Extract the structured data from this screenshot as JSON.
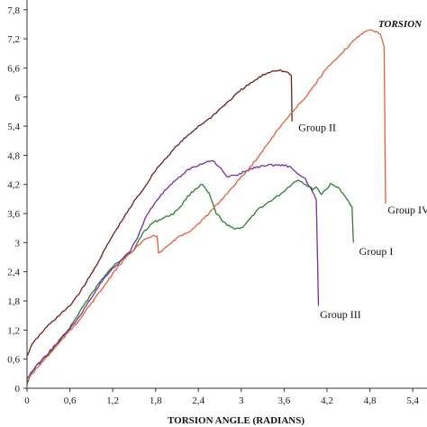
{
  "chart_data": {
    "type": "line",
    "title": "TORSION",
    "xlabel": "TORSION ANGLE (RADIANS)",
    "ylabel": "",
    "xlim": [
      0,
      5.6
    ],
    "ylim": [
      0,
      8
    ],
    "xticks": [
      "0",
      "0,6",
      "1,2",
      "1,8",
      "2,4",
      "3",
      "3,6",
      "4,2",
      "4,8",
      "5,4"
    ],
    "yticks": [
      "0",
      "0,6",
      "1,2",
      "1,8",
      "2,4",
      "3",
      "3,6",
      "4,2",
      "4,8",
      "5,4",
      "6",
      "6,6",
      "7,2",
      "7,8"
    ],
    "xtick_values": [
      0,
      0.6,
      1.2,
      1.8,
      2.4,
      3.0,
      3.6,
      4.2,
      4.8,
      5.4
    ],
    "ytick_values": [
      0,
      0.6,
      1.2,
      1.8,
      2.4,
      3.0,
      3.6,
      4.2,
      4.8,
      5.4,
      6.0,
      6.6,
      7.2,
      7.8
    ],
    "grid": false,
    "series": [
      {
        "name": "Group I",
        "color": "#2e7d32",
        "points": [
          [
            0,
            0.1
          ],
          [
            0.05,
            0.3
          ],
          [
            0.15,
            0.5
          ],
          [
            0.3,
            0.7
          ],
          [
            0.45,
            0.95
          ],
          [
            0.6,
            1.25
          ],
          [
            0.75,
            1.6
          ],
          [
            0.9,
            1.95
          ],
          [
            1.05,
            2.25
          ],
          [
            1.2,
            2.5
          ],
          [
            1.35,
            2.7
          ],
          [
            1.5,
            2.85
          ],
          [
            1.62,
            3.2
          ],
          [
            1.75,
            3.4
          ],
          [
            1.9,
            3.5
          ],
          [
            2.05,
            3.6
          ],
          [
            2.15,
            3.75
          ],
          [
            2.25,
            3.95
          ],
          [
            2.35,
            4.1
          ],
          [
            2.45,
            4.2
          ],
          [
            2.55,
            4.0
          ],
          [
            2.65,
            3.6
          ],
          [
            2.8,
            3.35
          ],
          [
            2.9,
            3.3
          ],
          [
            3.0,
            3.3
          ],
          [
            3.1,
            3.45
          ],
          [
            3.25,
            3.7
          ],
          [
            3.4,
            3.85
          ],
          [
            3.55,
            4.0
          ],
          [
            3.7,
            4.2
          ],
          [
            3.8,
            4.3
          ],
          [
            3.9,
            4.2
          ],
          [
            4.0,
            4.1
          ],
          [
            4.05,
            4.15
          ],
          [
            4.12,
            4.0
          ],
          [
            4.25,
            4.2
          ],
          [
            4.35,
            4.15
          ],
          [
            4.45,
            3.95
          ],
          [
            4.55,
            3.75
          ],
          [
            4.57,
            3.0
          ]
        ]
      },
      {
        "name": "Group II",
        "color": "#6d1f1f",
        "points": [
          [
            0,
            0.65
          ],
          [
            0.05,
            0.85
          ],
          [
            0.15,
            1.05
          ],
          [
            0.3,
            1.3
          ],
          [
            0.45,
            1.5
          ],
          [
            0.6,
            1.7
          ],
          [
            0.75,
            2.0
          ],
          [
            0.9,
            2.35
          ],
          [
            1.05,
            2.75
          ],
          [
            1.2,
            3.15
          ],
          [
            1.35,
            3.5
          ],
          [
            1.5,
            3.85
          ],
          [
            1.65,
            4.15
          ],
          [
            1.8,
            4.5
          ],
          [
            1.95,
            4.75
          ],
          [
            2.1,
            5.0
          ],
          [
            2.25,
            5.2
          ],
          [
            2.4,
            5.4
          ],
          [
            2.55,
            5.55
          ],
          [
            2.7,
            5.75
          ],
          [
            2.85,
            5.95
          ],
          [
            3.0,
            6.15
          ],
          [
            3.15,
            6.3
          ],
          [
            3.3,
            6.45
          ],
          [
            3.45,
            6.55
          ],
          [
            3.55,
            6.55
          ],
          [
            3.65,
            6.5
          ],
          [
            3.7,
            6.45
          ],
          [
            3.71,
            5.5
          ]
        ]
      },
      {
        "name": "Group III",
        "color": "#7b2c9e",
        "points": [
          [
            0,
            0.2
          ],
          [
            0.1,
            0.4
          ],
          [
            0.25,
            0.65
          ],
          [
            0.4,
            0.9
          ],
          [
            0.55,
            1.15
          ],
          [
            0.7,
            1.4
          ],
          [
            0.85,
            1.75
          ],
          [
            1.0,
            2.1
          ],
          [
            1.15,
            2.4
          ],
          [
            1.3,
            2.6
          ],
          [
            1.45,
            2.85
          ],
          [
            1.55,
            3.1
          ],
          [
            1.65,
            3.5
          ],
          [
            1.8,
            3.85
          ],
          [
            1.95,
            4.1
          ],
          [
            2.1,
            4.3
          ],
          [
            2.25,
            4.5
          ],
          [
            2.4,
            4.6
          ],
          [
            2.5,
            4.65
          ],
          [
            2.6,
            4.7
          ],
          [
            2.7,
            4.55
          ],
          [
            2.8,
            4.35
          ],
          [
            2.95,
            4.4
          ],
          [
            3.1,
            4.5
          ],
          [
            3.2,
            4.55
          ],
          [
            3.35,
            4.6
          ],
          [
            3.5,
            4.6
          ],
          [
            3.6,
            4.6
          ],
          [
            3.7,
            4.55
          ],
          [
            3.8,
            4.4
          ],
          [
            3.9,
            4.3
          ],
          [
            3.95,
            4.15
          ],
          [
            4.0,
            4.05
          ],
          [
            4.05,
            3.9
          ],
          [
            4.08,
            1.7
          ]
        ]
      },
      {
        "name": "Group IV",
        "color": "#e0603a",
        "points": [
          [
            0,
            0.15
          ],
          [
            0.1,
            0.35
          ],
          [
            0.25,
            0.6
          ],
          [
            0.4,
            0.85
          ],
          [
            0.55,
            1.1
          ],
          [
            0.7,
            1.35
          ],
          [
            0.85,
            1.65
          ],
          [
            1.0,
            1.95
          ],
          [
            1.15,
            2.25
          ],
          [
            1.3,
            2.55
          ],
          [
            1.45,
            2.8
          ],
          [
            1.6,
            3.0
          ],
          [
            1.7,
            3.1
          ],
          [
            1.82,
            3.15
          ],
          [
            1.84,
            2.8
          ],
          [
            1.95,
            2.9
          ],
          [
            2.1,
            3.1
          ],
          [
            2.25,
            3.2
          ],
          [
            2.4,
            3.4
          ],
          [
            2.55,
            3.6
          ],
          [
            2.7,
            3.85
          ],
          [
            2.85,
            4.1
          ],
          [
            3.0,
            4.35
          ],
          [
            3.15,
            4.6
          ],
          [
            3.3,
            4.9
          ],
          [
            3.45,
            5.2
          ],
          [
            3.6,
            5.5
          ],
          [
            3.75,
            5.75
          ],
          [
            3.9,
            6.0
          ],
          [
            4.05,
            6.3
          ],
          [
            4.2,
            6.6
          ],
          [
            4.35,
            6.8
          ],
          [
            4.5,
            7.05
          ],
          [
            4.6,
            7.2
          ],
          [
            4.72,
            7.35
          ],
          [
            4.8,
            7.4
          ],
          [
            4.85,
            7.35
          ],
          [
            4.9,
            7.35
          ],
          [
            4.95,
            7.3
          ],
          [
            5.0,
            7.05
          ],
          [
            5.02,
            3.8
          ]
        ]
      }
    ],
    "annotations": [
      {
        "text": "Group II",
        "x": 3.8,
        "y": 5.3
      },
      {
        "text": "Group IV",
        "x": 5.05,
        "y": 3.6
      },
      {
        "text": "Group I",
        "x": 4.65,
        "y": 2.75
      },
      {
        "text": "Group III",
        "x": 4.1,
        "y": 1.45
      }
    ]
  }
}
